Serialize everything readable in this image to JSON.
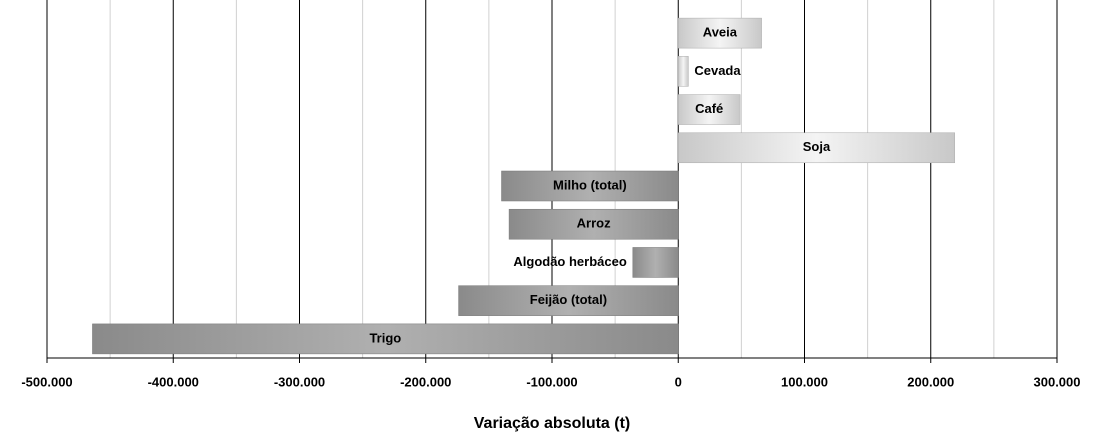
{
  "chart_data": {
    "type": "barh",
    "x_label": "Variação absoluta (t)",
    "categories": [
      "Aveia",
      "Cevada",
      "Café",
      "Soja",
      "Milho (total)",
      "Arroz",
      "Algodão herbáceo",
      "Feijão (total)",
      "Trigo"
    ],
    "values": [
      66000,
      8000,
      49000,
      219000,
      -140000,
      -134000,
      -36000,
      -174000,
      -464000
    ],
    "positive_color": "#c8c8c8",
    "negative_color": "#8a8a8a",
    "xlim": [
      -500000,
      300000
    ],
    "xticks": [
      {
        "value": -500000,
        "label": "-500.000"
      },
      {
        "value": -400000,
        "label": "-400.000"
      },
      {
        "value": -300000,
        "label": "-300.000"
      },
      {
        "value": -200000,
        "label": "-200.000"
      },
      {
        "value": -100000,
        "label": "-100.000"
      },
      0,
      {
        "value": 100000,
        "label": "100.000"
      },
      {
        "value": 200000,
        "label": "200.000"
      },
      {
        "value": 300000,
        "label": "300.000"
      }
    ],
    "xminor": [
      -450000,
      -350000,
      -250000,
      -150000,
      -50000,
      50000,
      150000,
      250000
    ],
    "grid": true
  }
}
